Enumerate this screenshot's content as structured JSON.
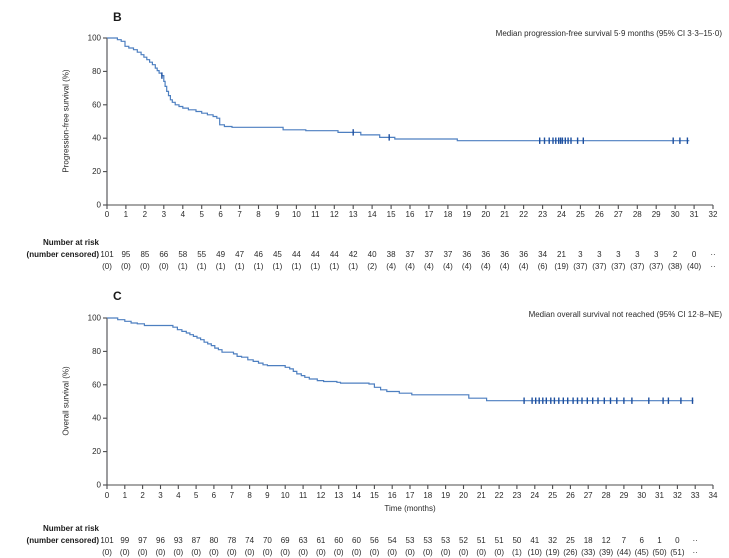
{
  "figure": {
    "risk_header_line1": "Number at risk",
    "risk_header_line2": "(number censored)"
  },
  "colors": {
    "curve": "#4d7fc0",
    "censor": "#1d4f9f",
    "axis": "#4c4c4e",
    "text": "#2a2a2a"
  },
  "chart_data": [
    {
      "type": "line",
      "panel_label": "B",
      "title": "",
      "xlabel": "",
      "ylabel": "Progression-free survival (%)",
      "annotation": "Median progression-free survival 5·9 months (95% CI 3·3–15·0)",
      "xlim": [
        0,
        32
      ],
      "ylim": [
        0,
        100
      ],
      "xticks": [
        0,
        1,
        2,
        3,
        4,
        5,
        6,
        7,
        8,
        9,
        10,
        11,
        12,
        13,
        14,
        15,
        16,
        17,
        18,
        19,
        20,
        21,
        22,
        23,
        24,
        25,
        26,
        27,
        28,
        29,
        30,
        31,
        32
      ],
      "yticks": [
        0,
        20,
        40,
        60,
        80,
        100
      ],
      "grid": false,
      "line_color": "#4d7fc0",
      "censor_color": "#1d4f9f",
      "series": [
        {
          "name": "Progression-free survival",
          "steps": [
            [
              0,
              100
            ],
            [
              0.55,
              100
            ],
            [
              0.55,
              99
            ],
            [
              0.75,
              99
            ],
            [
              0.75,
              98
            ],
            [
              0.95,
              98
            ],
            [
              0.95,
              95
            ],
            [
              1.15,
              95
            ],
            [
              1.15,
              94
            ],
            [
              1.4,
              94
            ],
            [
              1.4,
              93
            ],
            [
              1.6,
              93
            ],
            [
              1.6,
              91.5
            ],
            [
              1.8,
              91.5
            ],
            [
              1.8,
              90
            ],
            [
              1.95,
              90
            ],
            [
              1.95,
              88.5
            ],
            [
              2.1,
              88.5
            ],
            [
              2.1,
              87
            ],
            [
              2.25,
              87
            ],
            [
              2.25,
              85.5
            ],
            [
              2.4,
              85.5
            ],
            [
              2.4,
              84
            ],
            [
              2.55,
              84
            ],
            [
              2.55,
              82
            ],
            [
              2.65,
              82
            ],
            [
              2.65,
              80.5
            ],
            [
              2.75,
              80.5
            ],
            [
              2.75,
              79
            ],
            [
              2.9,
              79
            ],
            [
              2.9,
              77.5
            ],
            [
              3.0,
              77.5
            ],
            [
              3.0,
              74
            ],
            [
              3.07,
              74
            ],
            [
              3.07,
              71
            ],
            [
              3.15,
              71
            ],
            [
              3.15,
              68
            ],
            [
              3.25,
              68
            ],
            [
              3.25,
              65.5
            ],
            [
              3.35,
              65.5
            ],
            [
              3.35,
              63
            ],
            [
              3.45,
              63
            ],
            [
              3.45,
              61.5
            ],
            [
              3.6,
              61.5
            ],
            [
              3.6,
              60
            ],
            [
              3.8,
              60
            ],
            [
              3.8,
              59
            ],
            [
              4.0,
              59
            ],
            [
              4.0,
              58
            ],
            [
              4.3,
              58
            ],
            [
              4.3,
              57
            ],
            [
              4.7,
              57
            ],
            [
              4.7,
              56
            ],
            [
              5.0,
              56
            ],
            [
              5.0,
              55
            ],
            [
              5.3,
              55
            ],
            [
              5.3,
              54
            ],
            [
              5.6,
              54
            ],
            [
              5.6,
              53
            ],
            [
              5.8,
              53
            ],
            [
              5.8,
              52
            ],
            [
              5.95,
              52
            ],
            [
              5.95,
              48
            ],
            [
              6.2,
              48
            ],
            [
              6.2,
              47
            ],
            [
              6.6,
              47
            ],
            [
              6.6,
              46.5
            ],
            [
              9.3,
              46.5
            ],
            [
              9.3,
              45
            ],
            [
              10.5,
              45
            ],
            [
              10.5,
              44.5
            ],
            [
              12.2,
              44.5
            ],
            [
              12.2,
              43.5
            ],
            [
              13.4,
              43.5
            ],
            [
              13.4,
              42
            ],
            [
              14.4,
              42
            ],
            [
              14.4,
              40.5
            ],
            [
              15.2,
              40.5
            ],
            [
              15.2,
              39.5
            ],
            [
              18.5,
              39.5
            ],
            [
              18.5,
              38.5
            ],
            [
              30.75,
              38.5
            ]
          ]
        }
      ],
      "censor_marks": [
        [
          2.9,
          77.5
        ],
        [
          13.0,
          43.5
        ],
        [
          14.9,
          40.5
        ],
        [
          22.85,
          38.5
        ],
        [
          23.1,
          38.5
        ],
        [
          23.35,
          38.5
        ],
        [
          23.55,
          38.5
        ],
        [
          23.7,
          38.5
        ],
        [
          23.85,
          38.5
        ],
        [
          23.95,
          38.5
        ],
        [
          24.05,
          38.5
        ],
        [
          24.2,
          38.5
        ],
        [
          24.35,
          38.5
        ],
        [
          24.5,
          38.5
        ],
        [
          24.85,
          38.5
        ],
        [
          25.15,
          38.5
        ],
        [
          29.9,
          38.5
        ],
        [
          30.25,
          38.5
        ],
        [
          30.65,
          38.5
        ]
      ],
      "number_at_risk": [
        "101",
        "95",
        "85",
        "66",
        "58",
        "55",
        "49",
        "47",
        "46",
        "45",
        "44",
        "44",
        "44",
        "42",
        "40",
        "38",
        "37",
        "37",
        "37",
        "36",
        "36",
        "36",
        "36",
        "34",
        "21",
        "3",
        "3",
        "3",
        "3",
        "3",
        "2",
        "0",
        "··"
      ],
      "number_censored": [
        "(0)",
        "(0)",
        "(0)",
        "(0)",
        "(1)",
        "(1)",
        "(1)",
        "(1)",
        "(1)",
        "(1)",
        "(1)",
        "(1)",
        "(1)",
        "(1)",
        "(2)",
        "(4)",
        "(4)",
        "(4)",
        "(4)",
        "(4)",
        "(4)",
        "(4)",
        "(4)",
        "(6)",
        "(19)",
        "(37)",
        "(37)",
        "(37)",
        "(37)",
        "(37)",
        "(38)",
        "(40)",
        "··"
      ]
    },
    {
      "type": "line",
      "panel_label": "C",
      "title": "",
      "xlabel": "Time (months)",
      "ylabel": "Overall survival (%)",
      "annotation": "Median overall survival not reached (95% CI 12·8–NE)",
      "xlim": [
        0,
        34
      ],
      "ylim": [
        0,
        100
      ],
      "xticks": [
        0,
        1,
        2,
        3,
        4,
        5,
        6,
        7,
        8,
        9,
        10,
        11,
        12,
        13,
        14,
        15,
        16,
        17,
        18,
        19,
        20,
        21,
        22,
        23,
        24,
        25,
        26,
        27,
        28,
        29,
        30,
        31,
        32,
        33,
        34
      ],
      "yticks": [
        0,
        20,
        40,
        60,
        80,
        100
      ],
      "grid": false,
      "line_color": "#4d7fc0",
      "censor_color": "#1d4f9f",
      "series": [
        {
          "name": "Overall survival",
          "steps": [
            [
              0,
              100
            ],
            [
              0.6,
              100
            ],
            [
              0.6,
              99
            ],
            [
              1.0,
              99
            ],
            [
              1.0,
              98
            ],
            [
              1.35,
              98
            ],
            [
              1.35,
              97
            ],
            [
              1.7,
              97
            ],
            [
              1.7,
              96.5
            ],
            [
              2.1,
              96.5
            ],
            [
              2.1,
              95.5
            ],
            [
              3.7,
              95.5
            ],
            [
              3.7,
              94.5
            ],
            [
              3.95,
              94.5
            ],
            [
              3.95,
              93
            ],
            [
              4.2,
              93
            ],
            [
              4.2,
              92
            ],
            [
              4.45,
              92
            ],
            [
              4.45,
              91
            ],
            [
              4.65,
              91
            ],
            [
              4.65,
              90
            ],
            [
              4.85,
              90
            ],
            [
              4.85,
              89
            ],
            [
              5.05,
              89
            ],
            [
              5.05,
              88
            ],
            [
              5.25,
              88
            ],
            [
              5.25,
              87
            ],
            [
              5.45,
              87
            ],
            [
              5.45,
              85.5
            ],
            [
              5.65,
              85.5
            ],
            [
              5.65,
              84.5
            ],
            [
              5.85,
              84.5
            ],
            [
              5.85,
              83.5
            ],
            [
              6.05,
              83.5
            ],
            [
              6.05,
              82
            ],
            [
              6.25,
              82
            ],
            [
              6.25,
              81
            ],
            [
              6.45,
              81
            ],
            [
              6.45,
              79.5
            ],
            [
              7.1,
              79.5
            ],
            [
              7.1,
              78.5
            ],
            [
              7.3,
              78.5
            ],
            [
              7.3,
              77
            ],
            [
              7.55,
              77
            ],
            [
              7.55,
              76.5
            ],
            [
              7.9,
              76.5
            ],
            [
              7.9,
              75
            ],
            [
              8.2,
              75
            ],
            [
              8.2,
              74
            ],
            [
              8.5,
              74
            ],
            [
              8.5,
              73
            ],
            [
              8.75,
              73
            ],
            [
              8.75,
              72
            ],
            [
              9.0,
              72
            ],
            [
              9.0,
              71.5
            ],
            [
              10.0,
              71.5
            ],
            [
              10.0,
              70.5
            ],
            [
              10.25,
              70.5
            ],
            [
              10.25,
              69.5
            ],
            [
              10.45,
              69.5
            ],
            [
              10.45,
              68
            ],
            [
              10.65,
              68
            ],
            [
              10.65,
              66.5
            ],
            [
              10.9,
              66.5
            ],
            [
              10.9,
              65.5
            ],
            [
              11.1,
              65.5
            ],
            [
              11.1,
              64.5
            ],
            [
              11.35,
              64.5
            ],
            [
              11.35,
              63.5
            ],
            [
              11.8,
              63.5
            ],
            [
              11.8,
              62.5
            ],
            [
              12.15,
              62.5
            ],
            [
              12.15,
              62
            ],
            [
              12.9,
              62
            ],
            [
              12.9,
              61.5
            ],
            [
              13.1,
              61.5
            ],
            [
              13.1,
              61
            ],
            [
              14.7,
              61
            ],
            [
              14.7,
              60.5
            ],
            [
              15.0,
              60.5
            ],
            [
              15.0,
              58.5
            ],
            [
              15.35,
              58.5
            ],
            [
              15.35,
              57
            ],
            [
              15.7,
              57
            ],
            [
              15.7,
              56
            ],
            [
              16.4,
              56
            ],
            [
              16.4,
              55
            ],
            [
              17.1,
              55
            ],
            [
              17.1,
              54
            ],
            [
              20.3,
              54
            ],
            [
              20.3,
              52
            ],
            [
              21.3,
              52
            ],
            [
              21.3,
              50.5
            ],
            [
              32.9,
              50.5
            ]
          ]
        }
      ],
      "censor_marks": [
        [
          23.4,
          50.5
        ],
        [
          23.85,
          50.5
        ],
        [
          24.05,
          50.5
        ],
        [
          24.25,
          50.5
        ],
        [
          24.45,
          50.5
        ],
        [
          24.65,
          50.5
        ],
        [
          24.9,
          50.5
        ],
        [
          25.1,
          50.5
        ],
        [
          25.35,
          50.5
        ],
        [
          25.6,
          50.5
        ],
        [
          25.85,
          50.5
        ],
        [
          26.15,
          50.5
        ],
        [
          26.4,
          50.5
        ],
        [
          26.65,
          50.5
        ],
        [
          26.95,
          50.5
        ],
        [
          27.25,
          50.5
        ],
        [
          27.55,
          50.5
        ],
        [
          27.9,
          50.5
        ],
        [
          28.25,
          50.5
        ],
        [
          28.6,
          50.5
        ],
        [
          29.0,
          50.5
        ],
        [
          29.45,
          50.5
        ],
        [
          30.4,
          50.5
        ],
        [
          31.2,
          50.5
        ],
        [
          31.5,
          50.5
        ],
        [
          32.2,
          50.5
        ],
        [
          32.85,
          50.5
        ]
      ],
      "number_at_risk": [
        "101",
        "99",
        "97",
        "96",
        "93",
        "87",
        "80",
        "78",
        "74",
        "70",
        "69",
        "63",
        "61",
        "60",
        "60",
        "56",
        "54",
        "53",
        "53",
        "53",
        "52",
        "51",
        "51",
        "50",
        "41",
        "32",
        "25",
        "18",
        "12",
        "7",
        "6",
        "1",
        "0",
        "··"
      ],
      "number_censored": [
        "(0)",
        "(0)",
        "(0)",
        "(0)",
        "(0)",
        "(0)",
        "(0)",
        "(0)",
        "(0)",
        "(0)",
        "(0)",
        "(0)",
        "(0)",
        "(0)",
        "(0)",
        "(0)",
        "(0)",
        "(0)",
        "(0)",
        "(0)",
        "(0)",
        "(0)",
        "(0)",
        "(1)",
        "(10)",
        "(19)",
        "(26)",
        "(33)",
        "(39)",
        "(44)",
        "(45)",
        "(50)",
        "(51)",
        "··"
      ]
    }
  ]
}
